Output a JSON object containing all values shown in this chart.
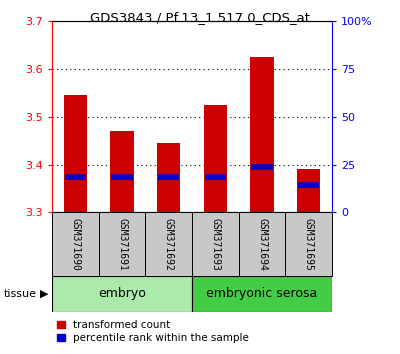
{
  "title": "GDS3843 / Pf.13_1.517.0_CDS_at",
  "samples": [
    "GSM371690",
    "GSM371691",
    "GSM371692",
    "GSM371693",
    "GSM371694",
    "GSM371695"
  ],
  "red_tops": [
    3.545,
    3.47,
    3.445,
    3.525,
    3.625,
    3.39
  ],
  "blue_values": [
    3.375,
    3.375,
    3.375,
    3.375,
    3.395,
    3.358
  ],
  "bar_bottom": 3.3,
  "ylim_left": [
    3.3,
    3.7
  ],
  "ylim_right": [
    0,
    100
  ],
  "yticks_left": [
    3.3,
    3.4,
    3.5,
    3.6,
    3.7
  ],
  "yticks_right": [
    0,
    25,
    50,
    75,
    100
  ],
  "ytick_labels_right": [
    "0",
    "25",
    "50",
    "75",
    "100%"
  ],
  "grid_lines": [
    3.4,
    3.5,
    3.6
  ],
  "bar_width": 0.5,
  "red_color": "#CC0000",
  "blue_color": "#0000CC",
  "bar_bg_color": "#C8C8C8",
  "embryo_color": "#AAEAAA",
  "serosa_color": "#44CC44",
  "legend_red": "transformed count",
  "legend_blue": "percentile rank within the sample",
  "tissue_label": "tissue",
  "figsize": [
    4.0,
    3.54
  ],
  "dpi": 100
}
